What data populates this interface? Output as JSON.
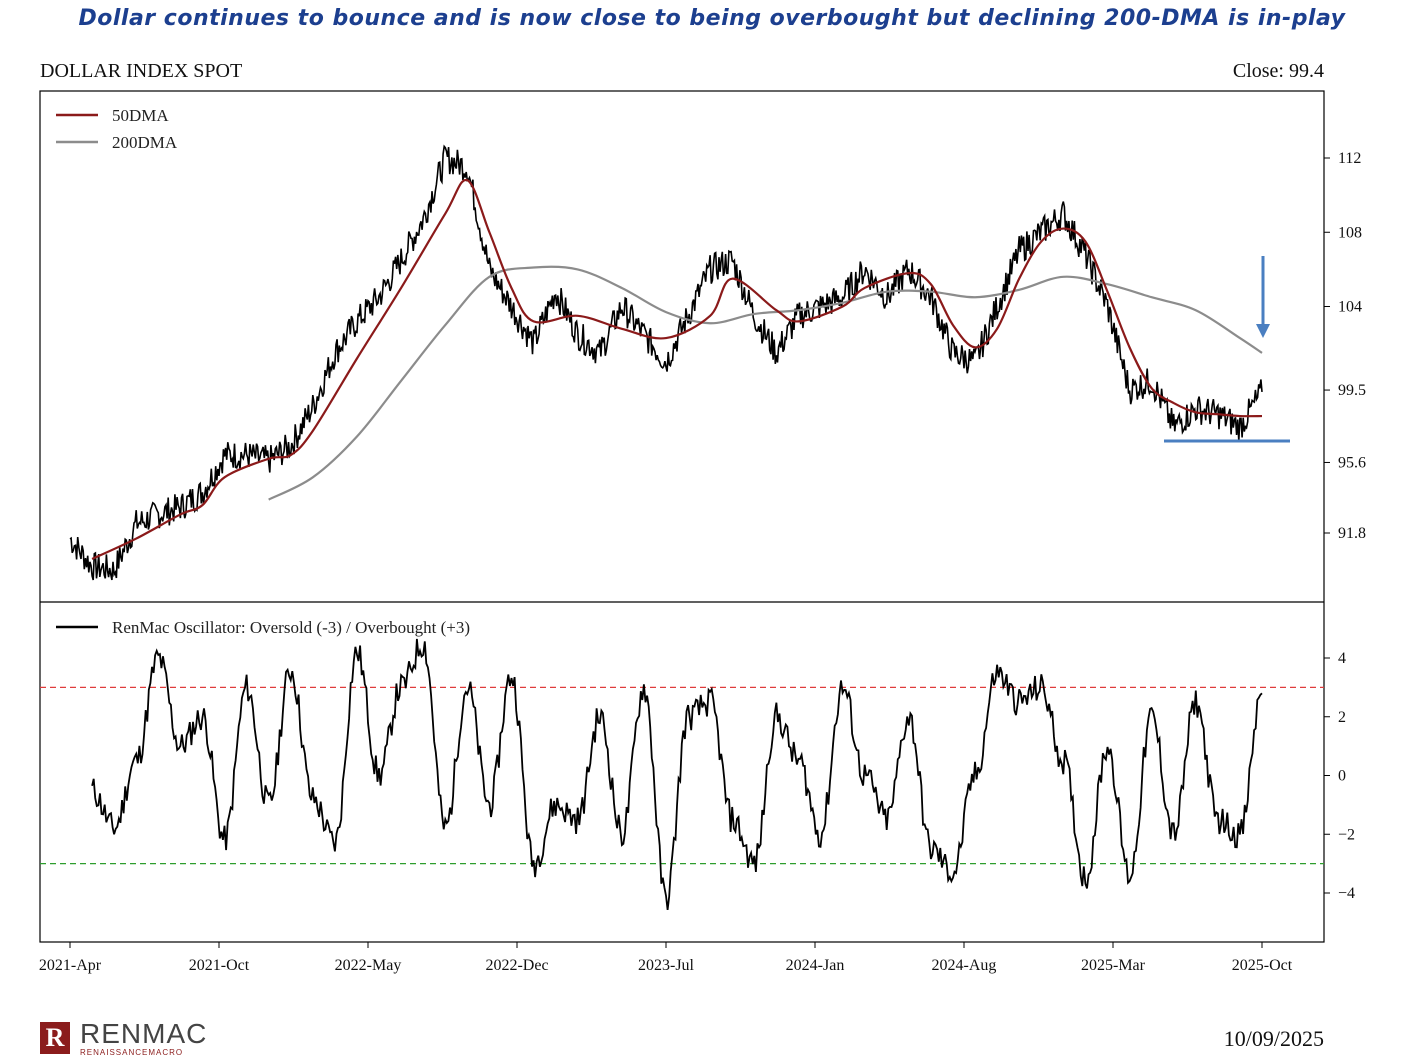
{
  "headline": "Dollar continues to bounce and is now close to being overbought but declining 200-DMA is in-play",
  "chart_title": "DOLLAR INDEX SPOT",
  "close_label": "Close: 99.4",
  "footer": {
    "logo_text": "RENMAC",
    "logo_sub": "RENAISSANCEMACRO",
    "date": "10/09/2025"
  },
  "colors": {
    "price": "#000000",
    "dma50": "#8b1a1a",
    "dma200": "#8c8c8c",
    "overbought_line": "#e03c3c",
    "oversold_line": "#2e9e2e",
    "annotation": "#4a7fc1"
  },
  "chart_data": [
    {
      "type": "line",
      "title": "DOLLAR INDEX SPOT",
      "x_ticks": [
        "2021-Apr",
        "2021-Oct",
        "2022-May",
        "2022-Dec",
        "2023-Jul",
        "2024-Jan",
        "2024-Aug",
        "2025-Mar",
        "2025-Oct"
      ],
      "y_ticks": [
        "112",
        "108",
        "104",
        "99.5",
        "95.6",
        "91.8"
      ],
      "legend": [
        "50DMA",
        "200DMA"
      ],
      "legend_position": "top-left",
      "annotations": [
        "down arrow above 200DMA near 2025-Oct",
        "horizontal support line near 97"
      ],
      "series": [
        {
          "name": "Price",
          "points": [
            [
              "2021-04",
              91.5
            ],
            [
              "2021-05",
              90.0
            ],
            [
              "2021-06",
              89.8
            ],
            [
              "2021-07",
              92.3
            ],
            [
              "2021-08",
              92.8
            ],
            [
              "2021-09",
              93.2
            ],
            [
              "2021-10",
              94.0
            ],
            [
              "2021-11",
              96.0
            ],
            [
              "2021-12",
              96.0
            ],
            [
              "2022-01",
              95.7
            ],
            [
              "2022-02",
              96.5
            ],
            [
              "2022-03",
              98.6
            ],
            [
              "2022-04",
              101.5
            ],
            [
              "2022-05",
              103.2
            ],
            [
              "2022-06",
              104.5
            ],
            [
              "2022-07",
              106.5
            ],
            [
              "2022-08",
              108.7
            ],
            [
              "2022-09",
              112.0
            ],
            [
              "2022-10",
              111.5
            ],
            [
              "2022-11",
              106.0
            ],
            [
              "2022-12",
              104.0
            ],
            [
              "2023-01",
              102.0
            ],
            [
              "2023-02",
              104.8
            ],
            [
              "2023-03",
              102.5
            ],
            [
              "2023-04",
              101.5
            ],
            [
              "2023-05",
              104.0
            ],
            [
              "2023-06",
              102.5
            ],
            [
              "2023-07",
              101.0
            ],
            [
              "2023-08",
              103.5
            ],
            [
              "2023-09",
              106.0
            ],
            [
              "2023-10",
              106.5
            ],
            [
              "2023-11",
              103.5
            ],
            [
              "2023-12",
              101.5
            ],
            [
              "2024-01",
              103.5
            ],
            [
              "2024-02",
              104.0
            ],
            [
              "2024-03",
              104.5
            ],
            [
              "2024-04",
              106.0
            ],
            [
              "2024-05",
              104.5
            ],
            [
              "2024-06",
              106.0
            ],
            [
              "2024-07",
              104.5
            ],
            [
              "2024-08",
              101.5
            ],
            [
              "2024-09",
              101.0
            ],
            [
              "2024-10",
              104.0
            ],
            [
              "2024-11",
              107.0
            ],
            [
              "2024-12",
              108.0
            ],
            [
              "2025-01",
              109.0
            ],
            [
              "2025-02",
              106.8
            ],
            [
              "2025-03",
              104.0
            ],
            [
              "2025-04",
              99.5
            ],
            [
              "2025-05",
              100.0
            ],
            [
              "2025-06",
              97.5
            ],
            [
              "2025-07",
              98.5
            ],
            [
              "2025-08",
              98.2
            ],
            [
              "2025-09",
              97.5
            ],
            [
              "2025-10",
              99.4
            ]
          ]
        },
        {
          "name": "50DMA",
          "points": [
            [
              "2021-05",
              90.4
            ],
            [
              "2021-07",
              91.5
            ],
            [
              "2021-09",
              92.8
            ],
            [
              "2021-10",
              93.3
            ],
            [
              "2021-11",
              94.8
            ],
            [
              "2022-01",
              95.8
            ],
            [
              "2022-02",
              96.0
            ],
            [
              "2022-03",
              97.3
            ],
            [
              "2022-05",
              101.2
            ],
            [
              "2022-07",
              105.0
            ],
            [
              "2022-09",
              109.0
            ],
            [
              "2022-10",
              110.8
            ],
            [
              "2022-11",
              108.0
            ],
            [
              "2022-12",
              105.0
            ],
            [
              "2023-01",
              103.2
            ],
            [
              "2023-03",
              103.5
            ],
            [
              "2023-05",
              102.8
            ],
            [
              "2023-07",
              102.3
            ],
            [
              "2023-09",
              103.5
            ],
            [
              "2023-10",
              105.5
            ],
            [
              "2023-12",
              103.8
            ],
            [
              "2024-01",
              103.2
            ],
            [
              "2024-03",
              104.0
            ],
            [
              "2024-04",
              105.0
            ],
            [
              "2024-06",
              105.8
            ],
            [
              "2024-07",
              105.2
            ],
            [
              "2024-08",
              103.0
            ],
            [
              "2024-09",
              101.8
            ],
            [
              "2024-10",
              102.8
            ],
            [
              "2024-11",
              105.5
            ],
            [
              "2024-12",
              107.5
            ],
            [
              "2025-01",
              108.2
            ],
            [
              "2025-02",
              107.5
            ],
            [
              "2025-03",
              104.8
            ],
            [
              "2025-04",
              101.8
            ],
            [
              "2025-05",
              99.6
            ],
            [
              "2025-06",
              98.8
            ],
            [
              "2025-07",
              98.3
            ],
            [
              "2025-08",
              98.2
            ],
            [
              "2025-09",
              98.1
            ],
            [
              "2025-10",
              98.1
            ]
          ]
        },
        {
          "name": "200DMA",
          "points": [
            [
              "2022-01",
              93.6
            ],
            [
              "2022-03",
              94.8
            ],
            [
              "2022-05",
              97.0
            ],
            [
              "2022-07",
              100.0
            ],
            [
              "2022-09",
              103.0
            ],
            [
              "2022-11",
              105.6
            ],
            [
              "2023-01",
              106.1
            ],
            [
              "2023-03",
              106.0
            ],
            [
              "2023-05",
              105.0
            ],
            [
              "2023-07",
              103.7
            ],
            [
              "2023-09",
              103.1
            ],
            [
              "2023-11",
              103.6
            ],
            [
              "2024-01",
              103.8
            ],
            [
              "2024-03",
              104.2
            ],
            [
              "2024-05",
              104.8
            ],
            [
              "2024-07",
              104.8
            ],
            [
              "2024-09",
              104.5
            ],
            [
              "2024-11",
              104.9
            ],
            [
              "2025-01",
              105.6
            ],
            [
              "2025-03",
              105.2
            ],
            [
              "2025-05",
              104.5
            ],
            [
              "2025-07",
              103.8
            ],
            [
              "2025-09",
              102.3
            ],
            [
              "2025-10",
              101.5
            ]
          ]
        }
      ]
    },
    {
      "type": "line",
      "title": "",
      "x_ticks": [
        "2021-Apr",
        "2021-Oct",
        "2022-May",
        "2022-Dec",
        "2023-Jul",
        "2024-Jan",
        "2024-Aug",
        "2025-Mar",
        "2025-Oct"
      ],
      "y_ticks": [
        "4",
        "2",
        "0",
        "−2",
        "−4"
      ],
      "ylim": [
        -4.8,
        4.5
      ],
      "legend": [
        "RenMac Oscillator: Oversold (-3) / Overbought (+3)"
      ],
      "legend_position": "top-left",
      "reference_lines": [
        3,
        -3
      ],
      "series": [
        {
          "name": "RenMac Oscillator: Oversold (-3) / Overbought (+3)",
          "points": [
            [
              "2021-05",
              -0.5
            ],
            [
              "2021-06",
              -1.8
            ],
            [
              "2021-07",
              0.5
            ],
            [
              "2021-08",
              4.0
            ],
            [
              "2021-09",
              1.0
            ],
            [
              "2021-10",
              2.0
            ],
            [
              "2021-11",
              -2.2
            ],
            [
              "2021-12",
              3.0
            ],
            [
              "2022-01",
              -1.0
            ],
            [
              "2022-02",
              3.6
            ],
            [
              "2022-03",
              -0.8
            ],
            [
              "2022-04",
              -2.3
            ],
            [
              "2022-05",
              4.2
            ],
            [
              "2022-06",
              0.0
            ],
            [
              "2022-07",
              3.0
            ],
            [
              "2022-08",
              4.5
            ],
            [
              "2022-09",
              -1.8
            ],
            [
              "2022-10",
              3.0
            ],
            [
              "2022-11",
              -1.0
            ],
            [
              "2022-12",
              3.4
            ],
            [
              "2023-01",
              -3.0
            ],
            [
              "2023-02",
              -1.0
            ],
            [
              "2023-03",
              -1.5
            ],
            [
              "2023-04",
              2.0
            ],
            [
              "2023-05",
              -2.0
            ],
            [
              "2023-06",
              3.0
            ],
            [
              "2023-07",
              -4.2
            ],
            [
              "2023-08",
              2.0
            ],
            [
              "2023-09",
              2.5
            ],
            [
              "2023-10",
              -1.5
            ],
            [
              "2023-11",
              -3.0
            ],
            [
              "2023-12",
              2.0
            ],
            [
              "2024-01",
              0.5
            ],
            [
              "2024-02",
              -2.0
            ],
            [
              "2024-03",
              3.0
            ],
            [
              "2024-04",
              0.0
            ],
            [
              "2024-05",
              -1.5
            ],
            [
              "2024-06",
              2.0
            ],
            [
              "2024-07",
              -2.5
            ],
            [
              "2024-08",
              -3.3
            ],
            [
              "2024-09",
              0.0
            ],
            [
              "2024-10",
              3.5
            ],
            [
              "2024-11",
              2.5
            ],
            [
              "2024-12",
              3.0
            ],
            [
              "2025-01",
              0.5
            ],
            [
              "2025-02",
              -3.5
            ],
            [
              "2025-03",
              1.0
            ],
            [
              "2025-04",
              -3.4
            ],
            [
              "2025-05",
              2.0
            ],
            [
              "2025-06",
              -2.0
            ],
            [
              "2025-07",
              2.5
            ],
            [
              "2025-08",
              -1.5
            ],
            [
              "2025-09",
              -2.0
            ],
            [
              "2025-10",
              2.8
            ]
          ]
        }
      ]
    }
  ]
}
